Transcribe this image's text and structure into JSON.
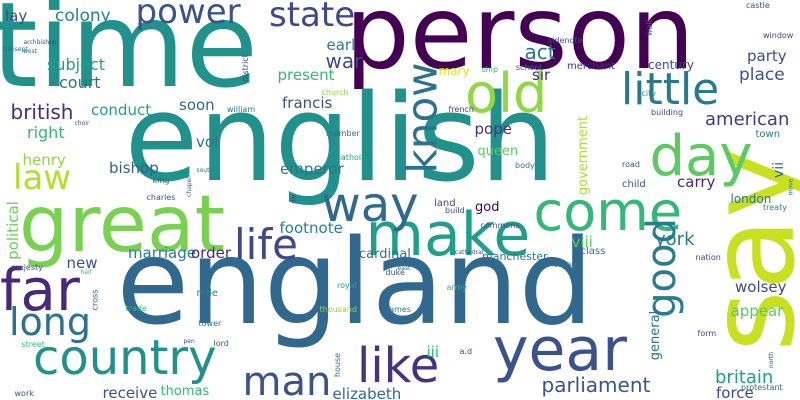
{
  "palette": {
    "purple": "#440154",
    "indigo": "#3b528b",
    "blue": "#31688e",
    "teal": "#21918c",
    "green": "#35b779",
    "lime": "#90d743",
    "yellow": "#d2e21b"
  },
  "words": [
    {
      "text": "time",
      "color": "#21918c",
      "vertical": false
    },
    {
      "text": "person",
      "color": "#440154",
      "vertical": false
    },
    {
      "text": "english",
      "color": "#21918c",
      "vertical": false
    },
    {
      "text": "england",
      "color": "#31688e",
      "vertical": false
    },
    {
      "text": "say",
      "color": "#c8e020",
      "vertical": true
    },
    {
      "text": "great",
      "color": "#7ad151",
      "vertical": false
    },
    {
      "text": "country",
      "color": "#21918c",
      "vertical": false
    },
    {
      "text": "year",
      "color": "#3b528b",
      "vertical": false
    },
    {
      "text": "old",
      "color": "#90d743",
      "vertical": false
    },
    {
      "text": "make",
      "color": "#1f9e89",
      "vertical": false
    },
    {
      "text": "come",
      "color": "#35b779",
      "vertical": false
    },
    {
      "text": "day",
      "color": "#5ec962",
      "vertical": false
    },
    {
      "text": "know",
      "color": "#2c728e",
      "vertical": true
    },
    {
      "text": "far",
      "color": "#482878",
      "vertical": false
    },
    {
      "text": "way",
      "color": "#31688e",
      "vertical": false
    },
    {
      "text": "little",
      "color": "#2a788e",
      "vertical": false
    },
    {
      "text": "life",
      "color": "#3e4989",
      "vertical": false
    },
    {
      "text": "long",
      "color": "#2c728e",
      "vertical": false
    },
    {
      "text": "like",
      "color": "#46327e",
      "vertical": false
    },
    {
      "text": "man",
      "color": "#3b528b",
      "vertical": false
    },
    {
      "text": "law",
      "color": "#b5de2b",
      "vertical": false
    },
    {
      "text": "good",
      "color": "#287c8e",
      "vertical": true
    },
    {
      "text": "power",
      "color": "#3b528b",
      "vertical": false
    },
    {
      "text": "state",
      "color": "#3e4989",
      "vertical": false
    },
    {
      "text": "parliament",
      "color": "#39568c",
      "vertical": false
    },
    {
      "text": "british",
      "color": "#472d7b",
      "vertical": false
    },
    {
      "text": "american",
      "color": "#443983",
      "vertical": false
    },
    {
      "text": "britain",
      "color": "#1f9e89",
      "vertical": false
    },
    {
      "text": "political",
      "color": "#6ece58",
      "vertical": true
    },
    {
      "text": "government",
      "color": "#addc30",
      "vertical": true
    },
    {
      "text": "york",
      "color": "#2a788e",
      "vertical": false
    },
    {
      "text": "wolsey",
      "color": "#3e4989",
      "vertical": false
    },
    {
      "text": "colony",
      "color": "#26828e",
      "vertical": false
    },
    {
      "text": "subject",
      "color": "#1f9e89",
      "vertical": false
    },
    {
      "text": "court",
      "color": "#2c728e",
      "vertical": false
    },
    {
      "text": "act",
      "color": "#2c728e",
      "vertical": false
    },
    {
      "text": "sir",
      "color": "#472d7b",
      "vertical": false
    },
    {
      "text": "place",
      "color": "#3b528b",
      "vertical": false
    },
    {
      "text": "party",
      "color": "#3e4989",
      "vertical": false
    },
    {
      "text": "war",
      "color": "#3e4989",
      "vertical": false
    },
    {
      "text": "earl",
      "color": "#287c8e",
      "vertical": false
    },
    {
      "text": "present",
      "color": "#35b779",
      "vertical": false
    },
    {
      "text": "right",
      "color": "#35b779",
      "vertical": false
    },
    {
      "text": "henry",
      "color": "#90d743",
      "vertical": false
    },
    {
      "text": "conduct",
      "color": "#20a386",
      "vertical": false
    },
    {
      "text": "bishop",
      "color": "#355f8d",
      "vertical": false
    },
    {
      "text": "francis",
      "color": "#3b528b",
      "vertical": false
    },
    {
      "text": "emperor",
      "color": "#2a788e",
      "vertical": false
    },
    {
      "text": "pope",
      "color": "#46327e",
      "vertical": false
    },
    {
      "text": "queen",
      "color": "#5ec962",
      "vertical": false
    },
    {
      "text": "soon",
      "color": "#31688e",
      "vertical": false
    },
    {
      "text": "vol",
      "color": "#2c728e",
      "vertical": false
    },
    {
      "text": "lay",
      "color": "#3e4989",
      "vertical": false
    },
    {
      "text": "new",
      "color": "#3b528b",
      "vertical": false
    },
    {
      "text": "marriage",
      "color": "#287c8e",
      "vertical": false
    },
    {
      "text": "order",
      "color": "#482878",
      "vertical": false
    },
    {
      "text": "footnote",
      "color": "#26828e",
      "vertical": false
    },
    {
      "text": "cardinal",
      "color": "#2c728e",
      "vertical": false
    },
    {
      "text": "manchester",
      "color": "#2a788e",
      "vertical": false
    },
    {
      "text": "carry",
      "color": "#482878",
      "vertical": false
    },
    {
      "text": "london",
      "color": "#2c728e",
      "vertical": false
    },
    {
      "text": "appear",
      "color": "#5ec962",
      "vertical": false
    },
    {
      "text": "force",
      "color": "#3e4989",
      "vertical": false
    },
    {
      "text": "receive",
      "color": "#3b528b",
      "vertical": false
    },
    {
      "text": "thomas",
      "color": "#35b779",
      "vertical": false
    },
    {
      "text": "elizabeth",
      "color": "#31688e",
      "vertical": false
    },
    {
      "text": "general",
      "color": "#2c728e",
      "vertical": true
    },
    {
      "text": "iii",
      "color": "#35b779",
      "vertical": false
    },
    {
      "text": "viii",
      "color": "#5ec962",
      "vertical": false
    },
    {
      "text": "vii",
      "color": "#31688e",
      "vertical": true
    },
    {
      "text": "mary",
      "color": "#dde318",
      "vertical": false
    },
    {
      "text": "century",
      "color": "#3e4989",
      "vertical": false
    },
    {
      "text": "merchant",
      "color": "#443983",
      "vertical": false
    },
    {
      "text": "god",
      "color": "#440154",
      "vertical": false
    },
    {
      "text": "class",
      "color": "#2c728e",
      "vertical": false
    },
    {
      "text": "mile",
      "color": "#26828e",
      "vertical": false
    },
    {
      "text": "school",
      "color": "#31688e",
      "vertical": false
    },
    {
      "text": "city",
      "color": "#1f9e89",
      "vertical": false
    },
    {
      "text": "town",
      "color": "#2a788e",
      "vertical": false
    },
    {
      "text": "road",
      "color": "#3e4989",
      "vertical": false
    },
    {
      "text": "child",
      "color": "#39568c",
      "vertical": false
    },
    {
      "text": "body",
      "color": "#2a788e",
      "vertical": false
    },
    {
      "text": "building",
      "color": "#3e4989",
      "vertical": false
    },
    {
      "text": "french",
      "color": "#443983",
      "vertical": false
    },
    {
      "text": "member",
      "color": "#2c728e",
      "vertical": false
    },
    {
      "text": "william",
      "color": "#2a788e",
      "vertical": false
    },
    {
      "text": "charles",
      "color": "#3b528b",
      "vertical": false
    },
    {
      "text": "king",
      "color": "#31688e",
      "vertical": false
    },
    {
      "text": "commons",
      "color": "#39568c",
      "vertical": false
    },
    {
      "text": "land",
      "color": "#3e4989",
      "vertical": false
    },
    {
      "text": "build",
      "color": "#3e4989",
      "vertical": false
    },
    {
      "text": "duke",
      "color": "#39568c",
      "vertical": false
    },
    {
      "text": "royal",
      "color": "#1f9e89",
      "vertical": false
    },
    {
      "text": "army",
      "color": "#35b779",
      "vertical": false
    },
    {
      "text": "james",
      "color": "#2a788e",
      "vertical": false
    },
    {
      "text": "thousand",
      "color": "#90d743",
      "vertical": false
    },
    {
      "text": "trade",
      "color": "#35b779",
      "vertical": false
    },
    {
      "text": "tower",
      "color": "#31688e",
      "vertical": false
    },
    {
      "text": "lord",
      "color": "#3b528b",
      "vertical": false
    },
    {
      "text": "house",
      "color": "#2c728e",
      "vertical": true
    },
    {
      "text": "cross",
      "color": "#31688e",
      "vertical": true
    },
    {
      "text": "street",
      "color": "#35b779",
      "vertical": false
    },
    {
      "text": "work",
      "color": "#3b528b",
      "vertical": false
    },
    {
      "text": "form",
      "color": "#3e4989",
      "vertical": false
    },
    {
      "text": "stand",
      "color": "#2a788e",
      "vertical": false
    },
    {
      "text": "nation",
      "color": "#3e4989",
      "vertical": false
    },
    {
      "text": "majesty",
      "color": "#3b528b",
      "vertical": false
    },
    {
      "text": "district",
      "color": "#3e4989",
      "vertical": true
    },
    {
      "text": "church",
      "color": "#90d743",
      "vertical": false
    },
    {
      "text": "catholic",
      "color": "#1f9e89",
      "vertical": false
    },
    {
      "text": "ship",
      "color": "#35b779",
      "vertical": false
    },
    {
      "text": "sidenote",
      "color": "#39568c",
      "vertical": false
    },
    {
      "text": "castle",
      "color": "#3e4989",
      "vertical": false
    },
    {
      "text": "window",
      "color": "#3e4989",
      "vertical": false
    },
    {
      "text": "wall",
      "color": "#31688e",
      "vertical": true
    },
    {
      "text": "treaty",
      "color": "#26828e",
      "vertical": false
    },
    {
      "text": "protestant",
      "color": "#31688e",
      "vertical": false
    },
    {
      "text": "north",
      "color": "#3e4989",
      "vertical": true
    },
    {
      "text": "south",
      "color": "#2a788e",
      "vertical": false
    },
    {
      "text": "chapel",
      "color": "#31688e",
      "vertical": true
    },
    {
      "text": "die",
      "color": "#3e4989",
      "vertical": true
    },
    {
      "text": "cathedral",
      "color": "#3b528b",
      "vertical": false
    },
    {
      "text": "east",
      "color": "#2c728e",
      "vertical": false
    },
    {
      "text": "archbishop",
      "color": "#3e4989",
      "vertical": false
    },
    {
      "text": "transept",
      "color": "#31688e",
      "vertical": false
    },
    {
      "text": "choir",
      "color": "#3e4989",
      "vertical": false
    },
    {
      "text": "west",
      "color": "#2c728e",
      "vertical": false
    },
    {
      "text": "a.d",
      "color": "#3e4989",
      "vertical": false
    },
    {
      "text": "move",
      "color": "#2a788e",
      "vertical": true
    },
    {
      "text": "hall",
      "color": "#35b779",
      "vertical": false
    },
    {
      "text": "pen",
      "color": "#3e4989",
      "vertical": false
    }
  ]
}
